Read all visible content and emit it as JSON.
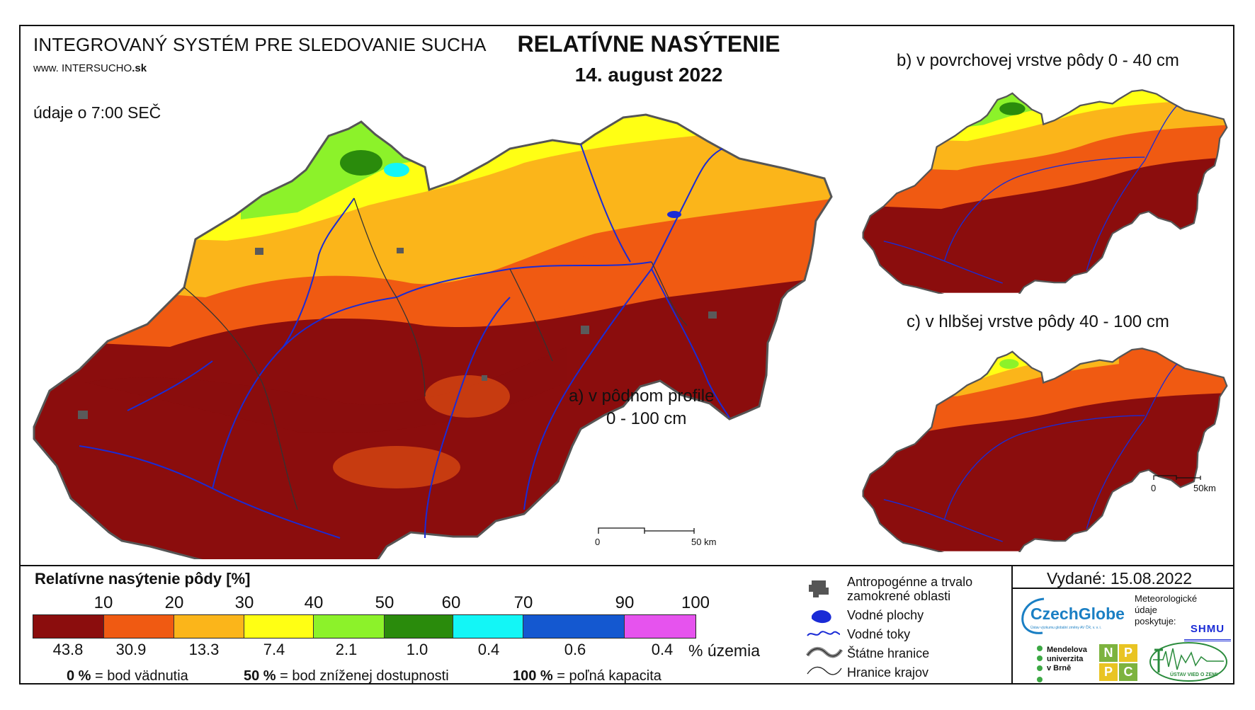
{
  "header": {
    "system_name": "INTEGROVANÝ SYSTÉM PRE SLEDOVANIE SUCHA",
    "url_prefix": "www.",
    "url_name": "INTERSUCHO",
    "url_suffix": ".sk",
    "time_note": "údaje o 7:00 SEČ",
    "title": "RELATÍVNE NASÝTENIE",
    "date": "14. august 2022"
  },
  "maps": {
    "a_label_line1": "a) v pôdnom profile",
    "a_label_line2": "0 - 100 cm",
    "b_label": "b) v povrchovej vrstve pôdy 0 - 40 cm",
    "c_label": "c) v hlbšej vrstve pôdy 40 - 100 cm",
    "scale_main": {
      "start": "0",
      "end": "50 km"
    },
    "scale_b": {
      "start": "0",
      "end": "50km"
    }
  },
  "legend": {
    "title": "Relatívne nasýtenie pôdy [%]",
    "ticks": [
      "10",
      "20",
      "30",
      "40",
      "50",
      "60",
      "70",
      "90",
      "100"
    ],
    "classes": [
      {
        "color": "#8b0d0d",
        "share": "43.8"
      },
      {
        "color": "#f05a12",
        "share": "30.9"
      },
      {
        "color": "#fbb51a",
        "share": "13.3"
      },
      {
        "color": "#ffff14",
        "share": "7.4"
      },
      {
        "color": "#8cf22a",
        "share": "2.1"
      },
      {
        "color": "#2a8b0c",
        "share": "1.0"
      },
      {
        "color": "#13f6f6",
        "share": "0.4"
      },
      {
        "color": "#1458d0",
        "share": "0.6"
      },
      {
        "color": "#e653ee",
        "share": "0.4"
      }
    ],
    "share_unit": "% územia",
    "note_0_value": "0 %",
    "note_0_text": "= bod vädnutia",
    "note_50_value": "50 %",
    "note_50_text": "= bod zníženej dostupnosti",
    "note_100_value": "100 %",
    "note_100_text": "= poľná kapacita"
  },
  "map_key": {
    "anthropogenic": "Antropogénne a trvalo zamokrené oblasti",
    "water_bodies": "Vodné plochy",
    "rivers": "Vodné toky",
    "state_borders": "Štátne hranice",
    "region_borders": "Hranice krajov"
  },
  "issued": "Vydané: 15.08.2022",
  "credits": {
    "czechglobe": "CzechGlobe",
    "czechglobe_sub": "Ústav výzkumu globální změny AV ČR, v. v. i.",
    "meteo_line1": "Meteorologické",
    "meteo_line2": "údaje",
    "meteo_line3": "poskytuje:",
    "shmu": "SHMU",
    "mendel_line1": "Mendelova",
    "mendel_line2": "univerzita",
    "mendel_line3": "v Brně",
    "nppc": [
      "N",
      "P",
      "P",
      "C"
    ],
    "uvz": "ÚSTAV VIED O ZEMI"
  }
}
